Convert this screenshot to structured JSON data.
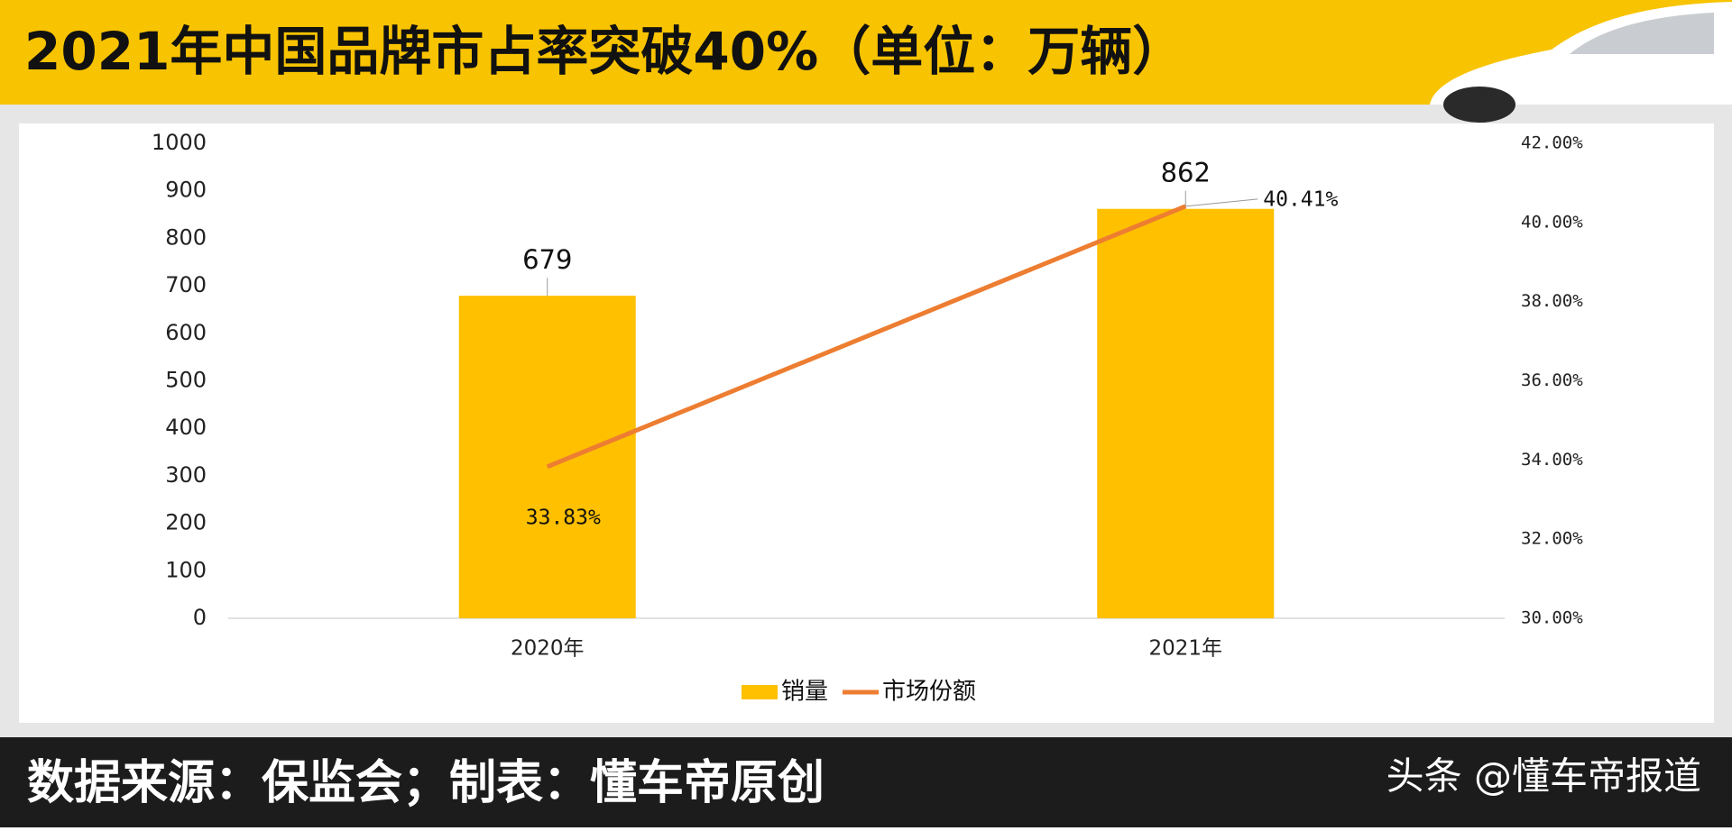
{
  "chart_data": {
    "type": "bar-line",
    "title": "2021年中国品牌市占率突破40%（单位：万辆）",
    "categories": [
      "2020年",
      "2021年"
    ],
    "series": [
      {
        "name": "销量",
        "type": "bar",
        "color": "#ffc000",
        "values": [
          679,
          862
        ]
      },
      {
        "name": "市场份额",
        "type": "line",
        "axis": "y2",
        "color": "#ed7d31",
        "values": [
          33.83,
          40.41
        ],
        "value_labels": [
          "33.83%",
          "40.41%"
        ]
      }
    ],
    "ylim": [
      0,
      1000
    ],
    "yticks": [
      0,
      100,
      200,
      300,
      400,
      500,
      600,
      700,
      800,
      900,
      1000
    ],
    "y2lim": [
      30,
      42
    ],
    "y2ticks": [
      {
        "value": 30,
        "label": "30.00%"
      },
      {
        "value": 32,
        "label": "32.00%"
      },
      {
        "value": 34,
        "label": "34.00%"
      },
      {
        "value": 36,
        "label": "36.00%"
      },
      {
        "value": 38,
        "label": "38.00%"
      },
      {
        "value": 40,
        "label": "40.00%"
      },
      {
        "value": 42,
        "label": "42.00%"
      }
    ],
    "legend": "bottom"
  },
  "footer": {
    "source": "数据来源：保监会；制表：懂车帝原创",
    "watermark": "头条 @懂车帝报道"
  }
}
